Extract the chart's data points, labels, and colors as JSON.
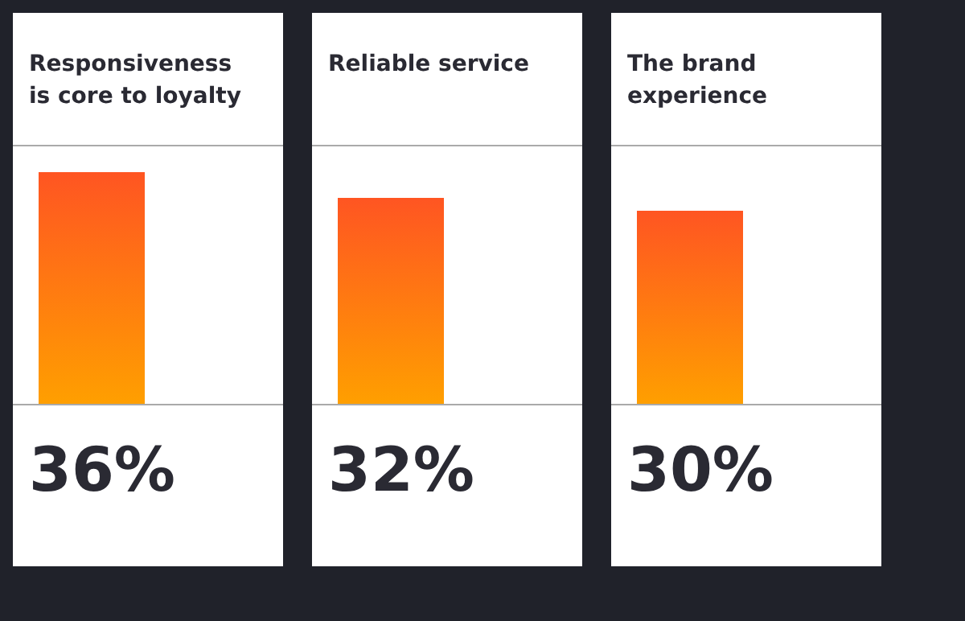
{
  "chart_data": {
    "type": "bar",
    "categories": [
      "Responsiveness is core to loyalty",
      "Reliable service",
      "The brand experience"
    ],
    "values": [
      36,
      32,
      30
    ],
    "value_labels": [
      "36%",
      "32%",
      "30%"
    ],
    "color": "#ff5522",
    "tick_labels": false
  }
}
